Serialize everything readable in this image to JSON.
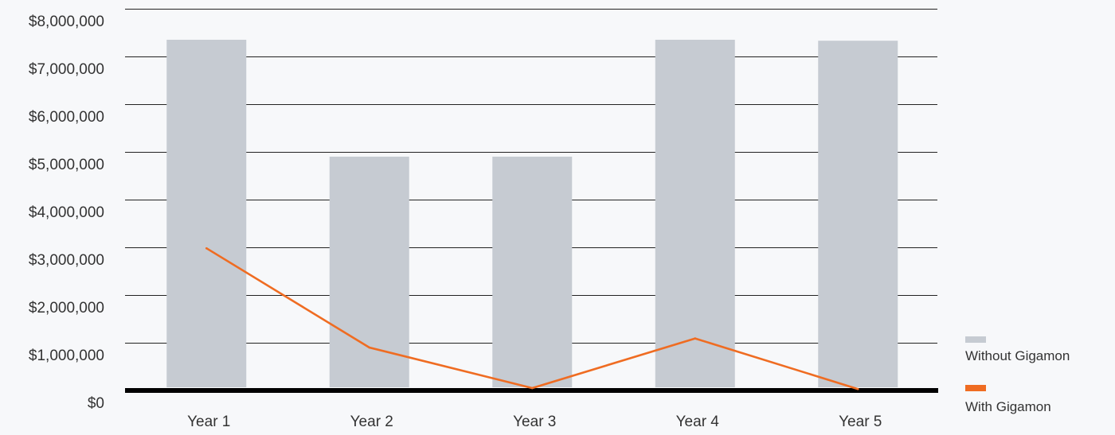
{
  "chart_data": {
    "type": "bar",
    "categories": [
      "Year 1",
      "Year 2",
      "Year 3",
      "Year 4",
      "Year 5"
    ],
    "y_tick_labels": [
      "$0",
      "$1,000,000",
      "$2,000,000",
      "$3,000,000",
      "$4,000,000",
      "$5,000,000",
      "$6,000,000",
      "$7,000,000",
      "$8,000,000"
    ],
    "y_ticks": [
      0,
      1000000,
      2000000,
      3000000,
      4000000,
      5000000,
      6000000,
      7000000,
      8000000
    ],
    "ylim": [
      0,
      8000000
    ],
    "grid": true,
    "legend_position": "bottom-right",
    "series": [
      {
        "name": "Without Gigamon",
        "type": "bar",
        "color": "#c6cbd2",
        "values": [
          7350000,
          4900000,
          4900000,
          7350000,
          7330000
        ]
      },
      {
        "name": "With Gigamon",
        "type": "line",
        "color": "#ef6c22",
        "values": [
          2980000,
          900000,
          50000,
          1090000,
          30000
        ]
      }
    ]
  }
}
